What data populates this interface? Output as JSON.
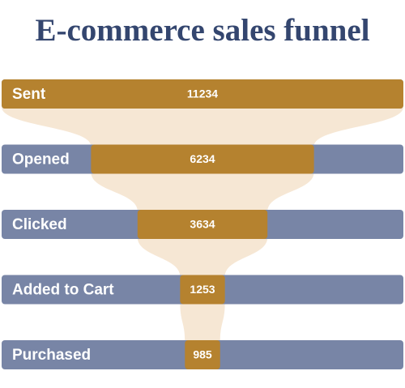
{
  "chart_data": {
    "type": "funnel",
    "title": "E-commerce sales funnel",
    "categories": [
      "Sent",
      "Opened",
      "Clicked",
      "Added to Cart",
      "Purchased"
    ],
    "values": [
      11234,
      6234,
      3634,
      1253,
      985
    ],
    "color": "#b5822f",
    "track_color": "#7885a6",
    "connector_color": "#f6e7d4"
  }
}
